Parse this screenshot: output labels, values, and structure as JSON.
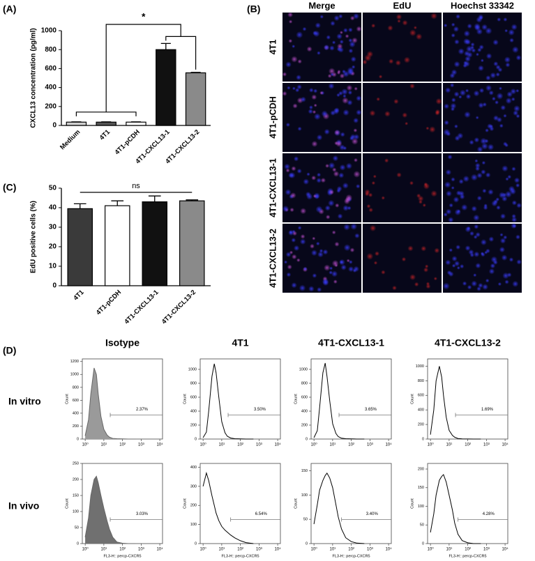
{
  "figure": {
    "panel_labels": [
      "(A)",
      "(B)",
      "(C)",
      "(D)"
    ],
    "microscopy": {
      "columns": [
        "Merge",
        "EdU",
        "Hoechst 33342"
      ],
      "rows": [
        "4T1",
        "4T1-pCDH",
        "4T1-CXCL13-1",
        "4T1-CXCL13-2"
      ]
    },
    "flow": {
      "columns": [
        "Isotype",
        "4T1",
        "4T1-CXCL13-1",
        "4T1-CXCL13-2"
      ],
      "rows": [
        "In vitro",
        "In vivo"
      ]
    }
  },
  "chart_data": [
    {
      "type": "bar",
      "ylabel": "CXCL13 concentration (pg/ml)",
      "categories": [
        "Medium",
        "4T1",
        "4T1-pCDH",
        "4T1-CXCL13-1",
        "4T1-CXCL13-2"
      ],
      "values": [
        35,
        35,
        35,
        800,
        555
      ],
      "errors": [
        3,
        3,
        3,
        65,
        5
      ],
      "colors": [
        "#cfcfcf",
        "#555555",
        "#ffffff",
        "#111111",
        "#8a8a8a"
      ],
      "ylim": [
        0,
        1000
      ],
      "yticks": [
        0,
        200,
        400,
        600,
        800,
        1000
      ],
      "annotation": "*"
    },
    {
      "type": "bar",
      "ylabel": "EdU positive cells (%)",
      "categories": [
        "4T1",
        "4T1-pCDH",
        "4T1-CXCL13-1",
        "4T1-CXCL13-2"
      ],
      "values": [
        39.5,
        41,
        43,
        43.5
      ],
      "errors": [
        2.5,
        2.5,
        3,
        0.5
      ],
      "colors": [
        "#3a3a3a",
        "#ffffff",
        "#111111",
        "#8a8a8a"
      ],
      "ylim": [
        0,
        50
      ],
      "yticks": [
        0,
        10,
        20,
        30,
        40,
        50
      ],
      "annotation": "ns"
    },
    {
      "type": "line",
      "fill": "#9a9a9a",
      "ylabel": "Count",
      "log_x": true,
      "xlim": [
        0.7,
        14000
      ],
      "xticks": [
        {
          "value": 1,
          "label": "10⁰"
        },
        {
          "value": 10,
          "label": "10¹"
        },
        {
          "value": 100,
          "label": "10²"
        },
        {
          "value": 1000,
          "label": "10³"
        },
        {
          "value": 10000,
          "label": "10⁴"
        }
      ],
      "ylim": [
        0,
        1240
      ],
      "yticks": [
        0,
        200,
        400,
        600,
        800,
        1000,
        1200
      ],
      "x": [
        1,
        1.5,
        2,
        3,
        4,
        5,
        7,
        10,
        15,
        20,
        30,
        50,
        100,
        200,
        500
      ],
      "values": [
        50,
        300,
        700,
        1100,
        1000,
        700,
        350,
        150,
        60,
        30,
        10,
        5,
        2,
        0,
        0
      ],
      "gate": [
        22,
        14000
      ],
      "gate_label": "2.37%"
    },
    {
      "type": "line",
      "ylabel": "Count",
      "log_x": true,
      "xlim": [
        0.7,
        14000
      ],
      "xticks": [
        {
          "value": 1,
          "label": "10⁰"
        },
        {
          "value": 10,
          "label": "10¹"
        },
        {
          "value": 100,
          "label": "10²"
        },
        {
          "value": 1000,
          "label": "10³"
        },
        {
          "value": 10000,
          "label": "10⁴"
        }
      ],
      "ylim": [
        0,
        1150
      ],
      "yticks": [
        0,
        200,
        400,
        600,
        800,
        1000
      ],
      "x": [
        1,
        1.5,
        2,
        3,
        4,
        5,
        7,
        10,
        15,
        20,
        30,
        50,
        100,
        200,
        500
      ],
      "values": [
        20,
        100,
        400,
        900,
        1080,
        950,
        600,
        250,
        90,
        40,
        15,
        5,
        2,
        0,
        0
      ],
      "gate": [
        22,
        14000
      ],
      "gate_label": "3.50%"
    },
    {
      "type": "line",
      "ylabel": "Count",
      "log_x": true,
      "xlim": [
        0.7,
        14000
      ],
      "xticks": [
        {
          "value": 1,
          "label": "10⁰"
        },
        {
          "value": 10,
          "label": "10¹"
        },
        {
          "value": 100,
          "label": "10²"
        },
        {
          "value": 1000,
          "label": "10³"
        },
        {
          "value": 10000,
          "label": "10⁴"
        }
      ],
      "ylim": [
        0,
        1150
      ],
      "yticks": [
        0,
        200,
        400,
        600,
        800,
        1000
      ],
      "x": [
        1,
        1.5,
        2,
        3,
        4,
        5,
        7,
        10,
        15,
        20,
        30,
        50,
        100,
        200,
        500
      ],
      "values": [
        20,
        120,
        450,
        950,
        1090,
        900,
        550,
        220,
        80,
        35,
        12,
        5,
        2,
        0,
        0
      ],
      "gate": [
        22,
        14000
      ],
      "gate_label": "3.65%"
    },
    {
      "type": "line",
      "ylabel": "Count",
      "log_x": true,
      "xlim": [
        0.7,
        14000
      ],
      "xticks": [
        {
          "value": 1,
          "label": "10⁰"
        },
        {
          "value": 10,
          "label": "10¹"
        },
        {
          "value": 100,
          "label": "10²"
        },
        {
          "value": 1000,
          "label": "10³"
        },
        {
          "value": 10000,
          "label": "10⁴"
        }
      ],
      "ylim": [
        0,
        1100
      ],
      "yticks": [
        0,
        200,
        400,
        600,
        800,
        1000
      ],
      "x": [
        1,
        1.5,
        2,
        3,
        4,
        5,
        7,
        10,
        15,
        20,
        30,
        50,
        100,
        200,
        500
      ],
      "values": [
        60,
        400,
        800,
        1000,
        850,
        600,
        300,
        120,
        50,
        25,
        8,
        3,
        1,
        0,
        0
      ],
      "gate": [
        22,
        14000
      ],
      "gate_label": "1.69%"
    },
    {
      "type": "line",
      "fill": "#707070",
      "ylabel": "Count",
      "xlabel": "FL3-H:: percp-CXCR5",
      "log_x": true,
      "xlim": [
        0.7,
        14000
      ],
      "xticks": [
        {
          "value": 1,
          "label": "10⁰"
        },
        {
          "value": 10,
          "label": "10¹"
        },
        {
          "value": 100,
          "label": "10²"
        },
        {
          "value": 1000,
          "label": "10³"
        },
        {
          "value": 10000,
          "label": "10⁴"
        }
      ],
      "ylim": [
        0,
        250
      ],
      "yticks": [
        0,
        50,
        100,
        150,
        200,
        250
      ],
      "x": [
        1,
        1.5,
        2,
        3,
        4,
        5,
        7,
        10,
        15,
        20,
        30,
        50,
        100,
        200,
        500
      ],
      "values": [
        20,
        80,
        150,
        200,
        210,
        190,
        150,
        110,
        70,
        45,
        20,
        5,
        1,
        0,
        0
      ],
      "gate": [
        22,
        14000
      ],
      "gate_label": "3.03%"
    },
    {
      "type": "line",
      "ylabel": "Count",
      "xlabel": "FL3-H:: percp-CXCR5",
      "log_x": true,
      "xlim": [
        0.7,
        14000
      ],
      "xticks": [
        {
          "value": 1,
          "label": "10⁰"
        },
        {
          "value": 10,
          "label": "10¹"
        },
        {
          "value": 100,
          "label": "10²"
        },
        {
          "value": 1000,
          "label": "10³"
        },
        {
          "value": 10000,
          "label": "10⁴"
        }
      ],
      "ylim": [
        0,
        420
      ],
      "yticks": [
        0,
        100,
        200,
        300,
        400
      ],
      "x": [
        1,
        1.5,
        2,
        3,
        4,
        5,
        7,
        10,
        15,
        20,
        30,
        50,
        100,
        200,
        500
      ],
      "values": [
        300,
        370,
        330,
        250,
        200,
        160,
        120,
        90,
        70,
        60,
        45,
        30,
        15,
        5,
        0
      ],
      "gate": [
        30,
        14000
      ],
      "gate_label": "6.54%"
    },
    {
      "type": "line",
      "ylabel": "Count",
      "xlabel": "FL3-H:: percp-CXCR5",
      "log_x": true,
      "xlim": [
        0.7,
        14000
      ],
      "xticks": [
        {
          "value": 1,
          "label": "10⁰"
        },
        {
          "value": 10,
          "label": "10¹"
        },
        {
          "value": 100,
          "label": "10²"
        },
        {
          "value": 1000,
          "label": "10³"
        },
        {
          "value": 10000,
          "label": "10⁴"
        }
      ],
      "ylim": [
        0,
        165
      ],
      "yticks": [
        0,
        50,
        100,
        150
      ],
      "x": [
        1,
        1.5,
        2,
        3,
        4,
        5,
        7,
        10,
        15,
        20,
        30,
        50,
        100,
        200,
        500
      ],
      "values": [
        40,
        80,
        110,
        130,
        140,
        145,
        135,
        115,
        80,
        55,
        30,
        12,
        4,
        1,
        0
      ],
      "gate": [
        30,
        14000
      ],
      "gate_label": "3.40%"
    },
    {
      "type": "line",
      "ylabel": "Count",
      "xlabel": "FL3-H:: percp-CXCR5",
      "log_x": true,
      "xlim": [
        0.7,
        14000
      ],
      "xticks": [
        {
          "value": 1,
          "label": "10⁰"
        },
        {
          "value": 10,
          "label": "10¹"
        },
        {
          "value": 100,
          "label": "10²"
        },
        {
          "value": 1000,
          "label": "10³"
        },
        {
          "value": 10000,
          "label": "10⁴"
        }
      ],
      "ylim": [
        0,
        215
      ],
      "yticks": [
        0,
        50,
        100,
        150,
        200
      ],
      "x": [
        1,
        1.5,
        2,
        3,
        4,
        5,
        7,
        10,
        15,
        20,
        30,
        50,
        100,
        200,
        500
      ],
      "values": [
        30,
        80,
        130,
        170,
        180,
        185,
        165,
        130,
        90,
        55,
        25,
        8,
        2,
        0,
        0
      ],
      "gate": [
        30,
        14000
      ],
      "gate_label": "4.28%"
    }
  ]
}
